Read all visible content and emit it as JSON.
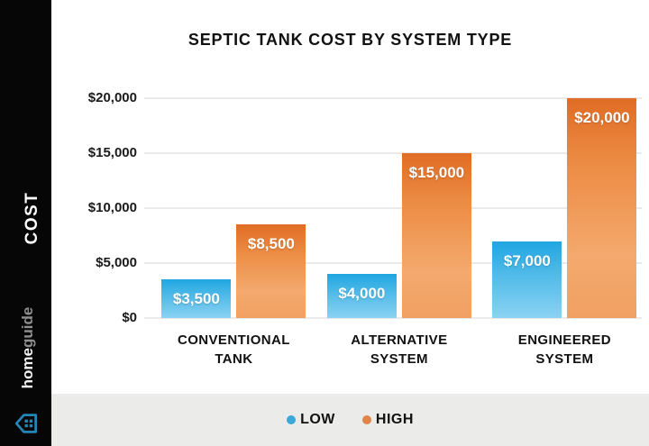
{
  "sidebar": {
    "cost_label": "COST",
    "brand_home": "home",
    "brand_guide": "guide",
    "icon": "homeguide-house-icon",
    "background": "#060606"
  },
  "chart_data": {
    "type": "bar",
    "title": "SEPTIC TANK COST BY SYSTEM TYPE",
    "ylabel": "COST",
    "categories": [
      "CONVENTIONAL TANK",
      "ALTERNATIVE SYSTEM",
      "ENGINEERED SYSTEM"
    ],
    "series": [
      {
        "name": "LOW",
        "color": "#2fa8e0",
        "values": [
          3500,
          4000,
          7000
        ],
        "labels": [
          "$3,500",
          "$4,000",
          "$7,000"
        ]
      },
      {
        "name": "HIGH",
        "color": "#e8832f",
        "values": [
          8500,
          15000,
          20000
        ],
        "labels": [
          "$8,500",
          "$15,000",
          "$20,000"
        ]
      }
    ],
    "y_axis": {
      "max": 20000,
      "tick_values": [
        20000,
        15000,
        10000,
        5000,
        0
      ],
      "tick_labels": [
        "$20,000",
        "$15,000",
        "$10,000",
        "$5,000",
        "$0"
      ]
    },
    "grid": true,
    "legend_position": "bottom"
  },
  "legend": {
    "items": [
      {
        "label": "LOW",
        "color": "#3aa8d8"
      },
      {
        "label": "HIGH",
        "color": "#e08448"
      }
    ]
  }
}
